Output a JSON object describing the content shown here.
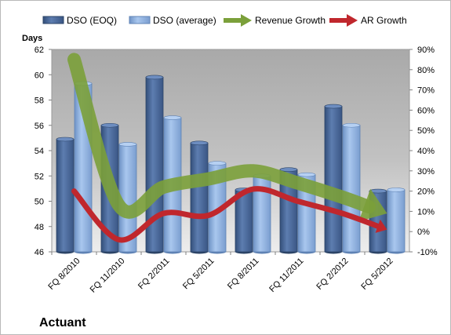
{
  "chart_data": {
    "type": "bar",
    "title": "Actuant",
    "ylabel": "Days",
    "categories": [
      "FQ 8/2010",
      "FQ 11/2010",
      "FQ 2/2011",
      "FQ 5/2011",
      "FQ 8/2011",
      "FQ 11/2011",
      "FQ 2/2012",
      "FQ 5/2012"
    ],
    "ylim": [
      46,
      62
    ],
    "yticks": [
      "46",
      "48",
      "50",
      "52",
      "54",
      "56",
      "58",
      "60",
      "62"
    ],
    "y2lim": [
      -10,
      90
    ],
    "y2ticks": [
      "-10%",
      "0%",
      "10%",
      "20%",
      "30%",
      "40%",
      "50%",
      "60%",
      "70%",
      "80%",
      "90%"
    ],
    "series": [
      {
        "name": "DSO (EOQ)",
        "kind": "bar",
        "color": "#4f6d9b",
        "values": [
          54.9,
          56.0,
          59.8,
          54.6,
          50.9,
          52.5,
          57.5,
          50.8
        ]
      },
      {
        "name": "DSO (average)",
        "kind": "bar",
        "color": "#8db4e2",
        "values": [
          59.3,
          54.5,
          56.6,
          53.0,
          52.0,
          52.1,
          56.0,
          50.9
        ]
      },
      {
        "name": "Revenue Growth",
        "kind": "line",
        "axis": "secondary",
        "color": "#7ba03a",
        "values": [
          85,
          13,
          22,
          26,
          30,
          24,
          17,
          9
        ]
      },
      {
        "name": "AR Growth",
        "kind": "line",
        "axis": "secondary",
        "color": "#c0272d",
        "values": [
          20,
          -4,
          9,
          8,
          21,
          15,
          9,
          1
        ]
      }
    ],
    "legend_position": "top",
    "grid": false
  }
}
